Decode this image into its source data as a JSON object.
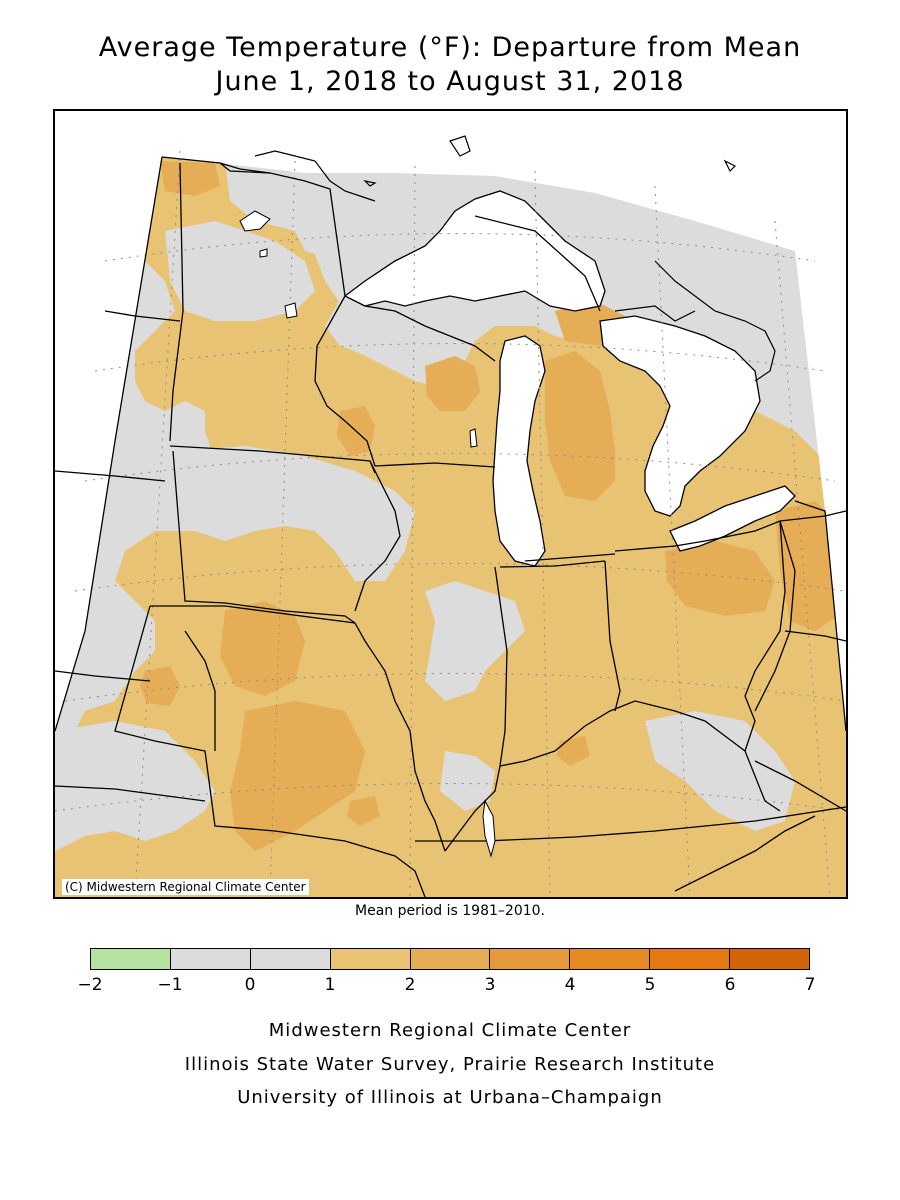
{
  "title": {
    "line1": "Average Temperature (°F): Departure from Mean",
    "line2": "June 1, 2018 to August 31, 2018"
  },
  "map": {
    "copyright": "(C) Midwestern Regional Climate Center",
    "mean_period_note": "Mean period is 1981–2010.",
    "colors": {
      "water": "#ffffff",
      "band_minus1_0": "#dcdcdc",
      "band_1_2": "#e8c373",
      "band_2_3": "#e5ad55",
      "band_3_4": "#e59a3c",
      "border": "#000000",
      "grid": "#8a8a8a"
    }
  },
  "legend": {
    "ticks": [
      "−2",
      "−1",
      "0",
      "1",
      "2",
      "3",
      "4",
      "5",
      "6",
      "7"
    ],
    "colors": [
      "#b3e2a1",
      "#dcdcdc",
      "#dcdcdc",
      "#e8c373",
      "#e5ad55",
      "#e59a3c",
      "#e68a24",
      "#e67812",
      "#d4640a"
    ]
  },
  "footer": {
    "line1": "Midwestern Regional Climate Center",
    "line2": "Illinois State Water Survey, Prairie Research Institute",
    "line3": "University of Illinois at Urbana–Champaign"
  }
}
